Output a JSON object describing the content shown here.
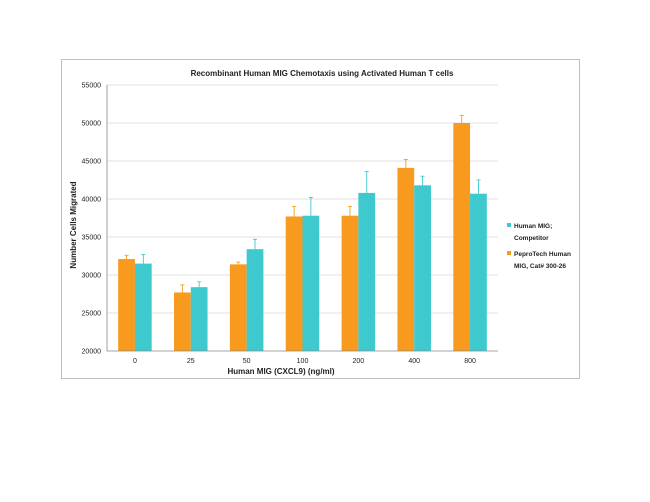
{
  "chart_data": {
    "type": "bar",
    "title": "Recombinant Human MIG Chemotaxis using Activated Human T cells",
    "xlabel": "Human MIG (CXCL9) (ng/ml)",
    "ylabel": "Number Cells Migrated",
    "ylim": [
      20000,
      55000
    ],
    "yticks": [
      20000,
      25000,
      30000,
      35000,
      40000,
      45000,
      50000,
      55000
    ],
    "grid": true,
    "legend_position": "right",
    "categories": [
      "0",
      "25",
      "50",
      "100",
      "200",
      "400",
      "800"
    ],
    "series": [
      {
        "name_lines": [
          "PeproTech Human",
          "MIG, Cat# 300-26"
        ],
        "color": "#f79a1e",
        "values": [
          32100,
          27700,
          31400,
          37700,
          37800,
          44100,
          50000
        ],
        "error": [
          500,
          1000,
          300,
          1300,
          1200,
          1100,
          1000
        ]
      },
      {
        "name_lines": [
          "Human MIG;",
          "Competitor"
        ],
        "color": "#3ec9cf",
        "values": [
          31500,
          28400,
          33400,
          37800,
          40800,
          41800,
          40700
        ],
        "error": [
          1200,
          700,
          1300,
          2400,
          2800,
          1200,
          1800
        ]
      }
    ],
    "legend_order": [
      1,
      0
    ]
  }
}
